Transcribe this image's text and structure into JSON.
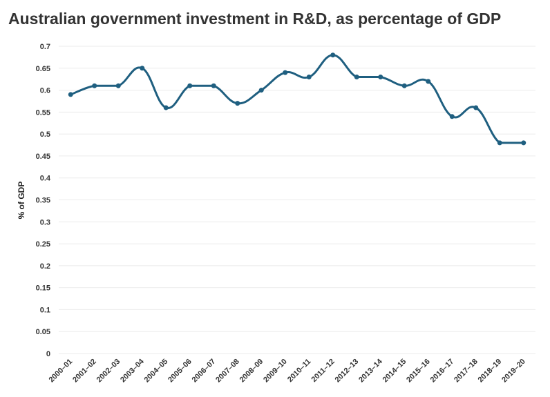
{
  "chart_data": {
    "type": "line",
    "title": "Australian government investment in R&D, as percentage of GDP",
    "xlabel": "",
    "ylabel": "% of GDP",
    "ylim": [
      0,
      0.7
    ],
    "yticks": [
      "0",
      "0.05",
      "0.1",
      "0.15",
      "0.2",
      "0.25",
      "0.3",
      "0.35",
      "0.4",
      "0.45",
      "0.5",
      "0.55",
      "0.6",
      "0.65",
      "0.7"
    ],
    "categories": [
      "2000–01",
      "2001–02",
      "2002–03",
      "2003–04",
      "2004–05",
      "2005–06",
      "2006–07",
      "2007–08",
      "2008–09",
      "2009–10",
      "2010–11",
      "2011–12",
      "2012–13",
      "2013–14",
      "2014–15",
      "2015–16",
      "2016–17",
      "2017–18",
      "2018–19",
      "2019–20"
    ],
    "values": [
      0.59,
      0.61,
      0.61,
      0.65,
      0.56,
      0.61,
      0.61,
      0.57,
      0.6,
      0.64,
      0.63,
      0.68,
      0.63,
      0.63,
      0.61,
      0.62,
      0.54,
      0.56,
      0.48,
      0.48
    ],
    "grid": "horizontal",
    "line_color": "#1f5f80",
    "grid_color": "#ebebeb"
  }
}
